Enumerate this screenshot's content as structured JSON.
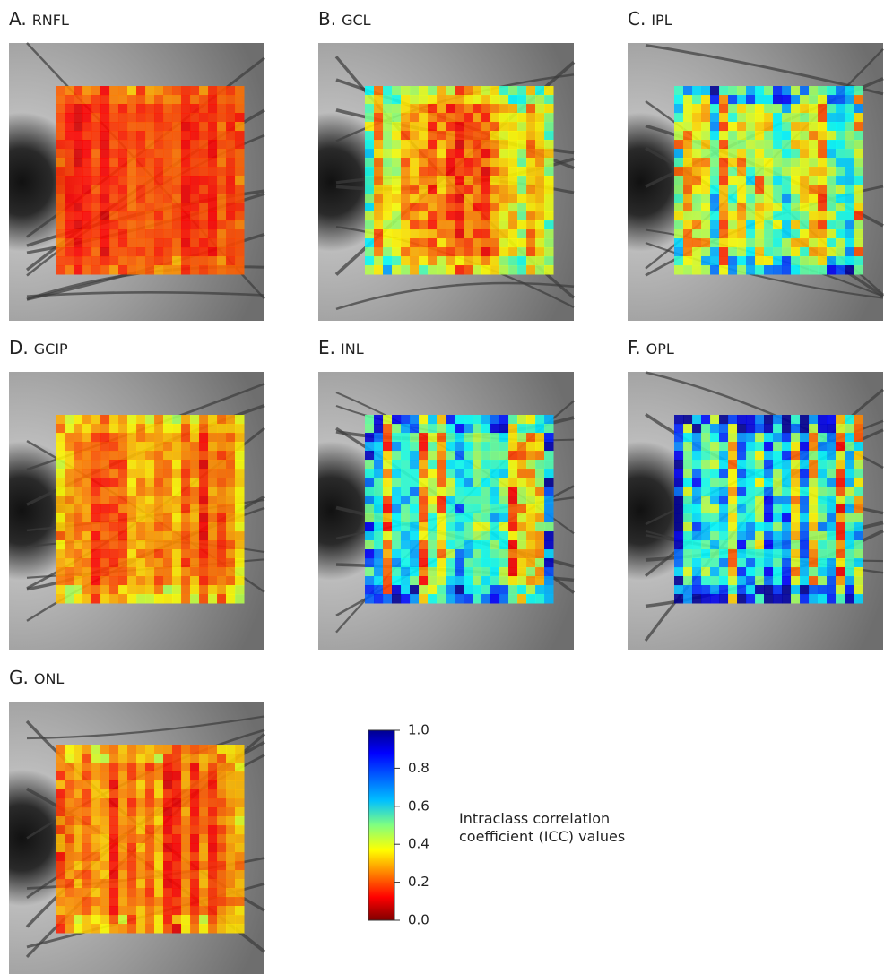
{
  "panels": [
    {
      "letter": "A.",
      "name": "RNFL"
    },
    {
      "letter": "B.",
      "name": "GCL"
    },
    {
      "letter": "C.",
      "name": "IPL"
    },
    {
      "letter": "D.",
      "name": "GCIP"
    },
    {
      "letter": "E.",
      "name": "INL"
    },
    {
      "letter": "F.",
      "name": "OPL"
    },
    {
      "letter": "G.",
      "name": "ONL"
    }
  ],
  "colorbar": {
    "lim": [
      0,
      1
    ],
    "ticks": [
      {
        "value": 1,
        "label": "1.0"
      },
      {
        "value": 0.8,
        "label": "0.8"
      },
      {
        "value": 0.6,
        "label": "0.6"
      },
      {
        "value": 0.4,
        "label": "0.4"
      },
      {
        "value": 0.2,
        "label": "0.2"
      },
      {
        "value": 0,
        "label": "0.0"
      }
    ],
    "label": "Intraclass correlation coefficient (ICC) values"
  }
}
